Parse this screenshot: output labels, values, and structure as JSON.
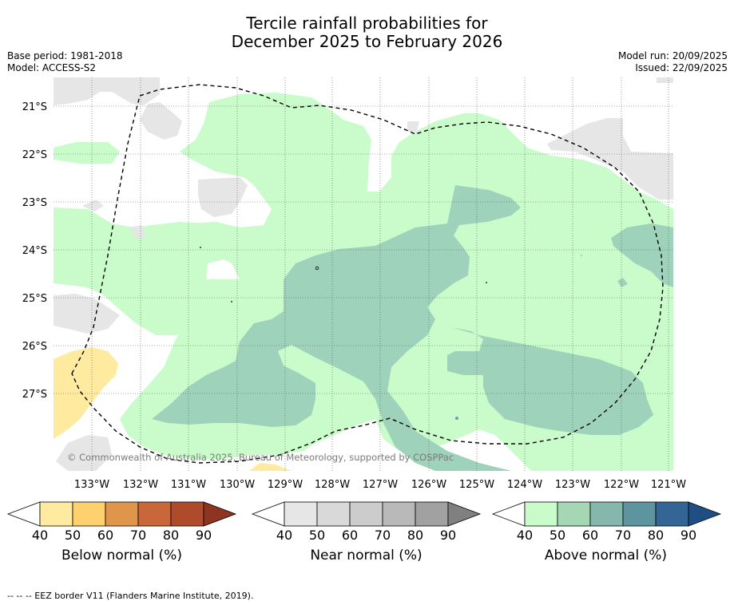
{
  "title_line1": "Tercile rainfall probabilities for",
  "title_line2": "December 2025 to February 2026",
  "meta": {
    "base_period": "Base period: 1981-2018",
    "model": "Model: ACCESS-S2",
    "model_run": "Model run: 20/09/2025",
    "issued": "Issued: 22/09/2025"
  },
  "map": {
    "lat_labels": [
      "21°S",
      "22°S",
      "23°S",
      "24°S",
      "25°S",
      "26°S",
      "27°S"
    ],
    "lon_labels": [
      "133°W",
      "132°W",
      "131°W",
      "130°W",
      "129°W",
      "128°W",
      "127°W",
      "126°W",
      "125°W",
      "124°W",
      "123°W",
      "122°W",
      "121°W"
    ],
    "copyright": "© Commonwealth of Australia 2025, Bureau of Meteorology, supported by COSPPac",
    "colors": {
      "above_40": "#c9fcca",
      "above_50": "#9fd2bb",
      "near_40": "#e6e6e6",
      "below_40": "#feeb9f",
      "gridline": "#555555",
      "eez_border": "#000000"
    }
  },
  "colorbars": {
    "ticks": [
      "40",
      "50",
      "60",
      "70",
      "80",
      "90"
    ],
    "below": {
      "label": "Below normal (%)",
      "colors": [
        "#ffffff",
        "#feeb9f",
        "#fed06e",
        "#e0964a",
        "#c9673a",
        "#af4b2a",
        "#8f3322"
      ]
    },
    "near": {
      "label": "Near normal (%)",
      "colors": [
        "#ffffff",
        "#e6e6e6",
        "#d9d9d9",
        "#cccccc",
        "#b9b9b9",
        "#a1a1a1",
        "#808080"
      ]
    },
    "above": {
      "label": "Above normal (%)",
      "colors": [
        "#ffffff",
        "#c9fcca",
        "#a5d7b4",
        "#85b7ad",
        "#5c94a0",
        "#336595",
        "#1e4e84"
      ]
    }
  },
  "footer": "--  --  -- EEZ border V11 (Flanders Marine Institute, 2019)."
}
